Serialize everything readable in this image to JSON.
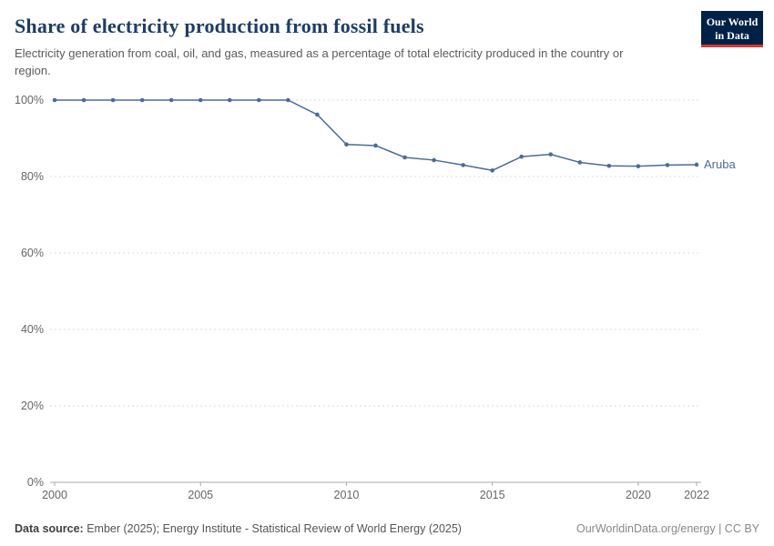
{
  "header": {
    "title": "Share of electricity production from fossil fuels",
    "subtitle": "Electricity generation from coal, oil, and gas, measured as a percentage of total electricity produced in the country or region."
  },
  "logo": {
    "line1": "Our World",
    "line2": "in Data",
    "bg": "#002147",
    "accent": "#d7382f"
  },
  "chart_data": {
    "type": "line",
    "title": "Share of electricity production from fossil fuels",
    "xlabel": "",
    "ylabel": "",
    "ylim": [
      0,
      100
    ],
    "yticks": [
      0,
      20,
      40,
      60,
      80,
      100
    ],
    "ytick_suffix": "%",
    "xticks": [
      2000,
      2005,
      2010,
      2015,
      2020,
      2022
    ],
    "xlim": [
      2000,
      2022
    ],
    "grid": "dashed-horizontal",
    "legend_position": "end-of-line-label",
    "series": [
      {
        "name": "Aruba",
        "color": "#4c6a9c",
        "x": [
          2000,
          2001,
          2002,
          2003,
          2004,
          2005,
          2006,
          2007,
          2008,
          2009,
          2010,
          2011,
          2012,
          2013,
          2014,
          2015,
          2016,
          2017,
          2018,
          2019,
          2020,
          2021,
          2022
        ],
        "values": [
          100,
          100,
          100,
          100,
          100,
          100,
          100,
          100,
          100,
          96.2,
          88.4,
          88.1,
          85.0,
          84.3,
          83.0,
          81.6,
          85.2,
          85.8,
          83.7,
          82.8,
          82.7,
          83.0,
          83.1
        ]
      }
    ]
  },
  "footer": {
    "source_label": "Data source:",
    "source_text": " Ember (2025); Energy Institute - Statistical Review of World Energy (2025)",
    "credit": "OurWorldinData.org/energy | CC BY"
  }
}
